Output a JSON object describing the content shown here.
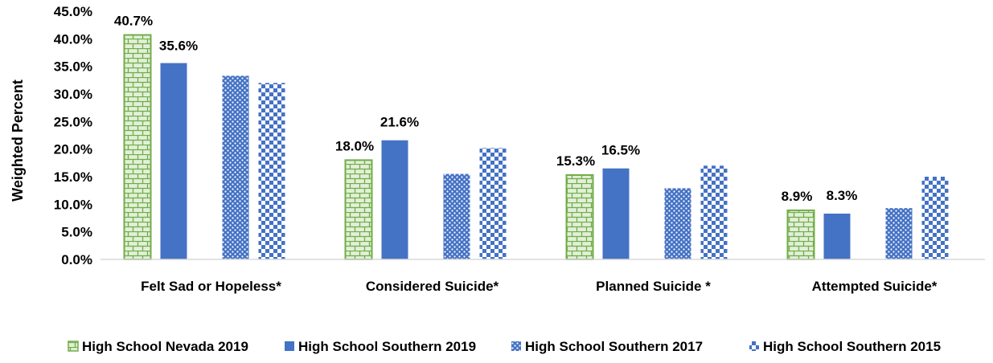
{
  "chart_data": {
    "type": "bar",
    "ylabel": "Weighted Percent",
    "ylim": [
      0,
      45
    ],
    "y_ticks": [
      "0.0%",
      "5.0%",
      "10.0%",
      "15.0%",
      "20.0%",
      "25.0%",
      "30.0%",
      "35.0%",
      "40.0%",
      "45.0%"
    ],
    "categories": [
      "Felt Sad or Hopeless*",
      "Considered Suicide*",
      "Planned Suicide *",
      "Attempted Suicide*"
    ],
    "series": [
      {
        "name": "High School Nevada 2019",
        "values": [
          40.7,
          18.0,
          15.3,
          8.9
        ],
        "labels": [
          "40.7%",
          "18.0%",
          "15.3%",
          "8.9%"
        ],
        "pattern": "brick",
        "color": "#70AD47",
        "fill": "#E2EFD9"
      },
      {
        "name": "High School Southern 2019",
        "values": [
          35.6,
          21.6,
          16.5,
          8.3
        ],
        "labels": [
          "35.6%",
          "21.6%",
          "16.5%",
          "8.3%"
        ],
        "pattern": "solid",
        "color": "#4472C4"
      },
      {
        "name": "High School Southern 2017",
        "values": [
          33.3,
          15.5,
          12.9,
          9.3
        ],
        "labels": [],
        "pattern": "dots",
        "color": "#4472C4"
      },
      {
        "name": "High School Southern 2015",
        "values": [
          32.0,
          20.2,
          17.0,
          15.0
        ],
        "labels": [],
        "pattern": "checker",
        "color": "#4472C4"
      }
    ],
    "legend_position": "bottom",
    "grid": false
  }
}
